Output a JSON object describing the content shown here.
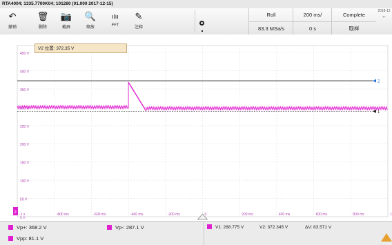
{
  "window": {
    "title": "RTA4004; 1335.7700K04; 101280 (01.000 2017-12-15)"
  },
  "toolbar": {
    "undo": {
      "label": "撤销",
      "icon": "undo-icon",
      "glyph": "↶"
    },
    "delete": {
      "label": "删除",
      "icon": "trash-icon",
      "glyph": "🗑"
    },
    "screenshot": {
      "label": "截屏",
      "icon": "camera-icon",
      "glyph": "📷"
    },
    "zoom": {
      "label": "缩放",
      "icon": "zoom-icon",
      "glyph": "🔍"
    },
    "fft": {
      "label": "FFT",
      "icon": "fft-icon",
      "glyph": "ılıı"
    },
    "annotate": {
      "label": "注释",
      "icon": "pen-icon",
      "glyph": "✎"
    }
  },
  "acquisition": {
    "mode": "Roll",
    "sample_rate": "83.3 MSa/s",
    "timebase": "200 ms/",
    "position": "0 s",
    "status": "Complete",
    "status_sub": "取样",
    "date": "2018-12"
  },
  "readout": "V2 位置: 372.35 V",
  "grid": {
    "y_labels": [
      "450 V",
      "400 V",
      "350 V",
      "300 V",
      "250 V",
      "200 V",
      "150 V",
      "100 V",
      "50 V",
      "0 V"
    ],
    "x_labels": [
      "-1 s",
      "-800 ms",
      "-600 ms",
      "-400 ms",
      "-200 ms",
      "0",
      "200 ms",
      "400 ms",
      "600 ms",
      "800 ms",
      "1 s"
    ]
  },
  "cursors": {
    "v2_marker": "2",
    "v1_marker": "1"
  },
  "measurements": {
    "vp_plus": "Vp+: 368.2 V",
    "vp_minus": "Vp-: 287.1 V",
    "vpp": "Vpp: 81.1 V",
    "v1": "V1: 288.775 V",
    "v2": "V2: 372.345 V",
    "dv": "ΔV: 83.571 V"
  },
  "colors": {
    "trace": "#e020d0",
    "cursor_v1": "#555555",
    "cursor_v2": "#222222",
    "marker_v2": "#2a6fd6"
  }
}
